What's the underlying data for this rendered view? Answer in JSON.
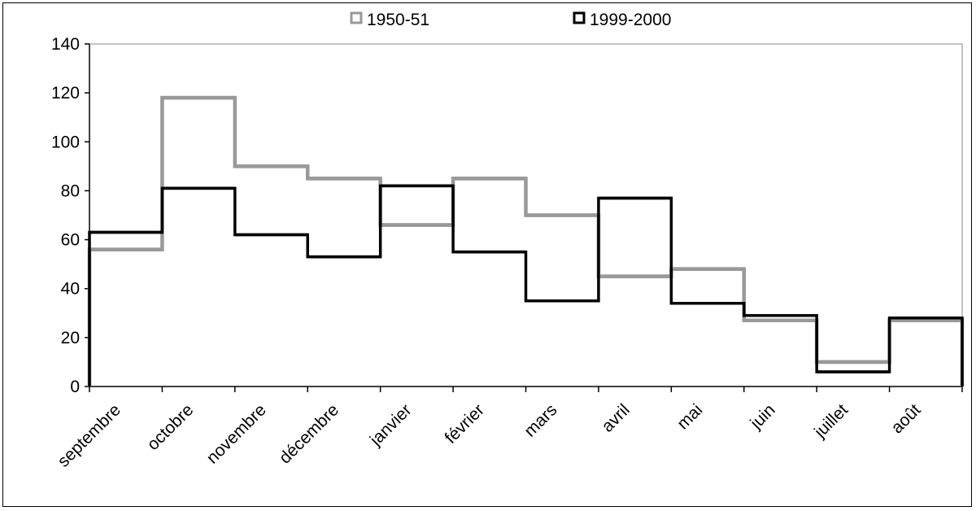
{
  "chart_data": {
    "type": "step",
    "categories": [
      "septembre",
      "octobre",
      "novembre",
      "décembre",
      "janvier",
      "février",
      "mars",
      "avril",
      "mai",
      "juin",
      "juillet",
      "août"
    ],
    "series": [
      {
        "name": "1950-51",
        "color": "#999999",
        "values": [
          56,
          118,
          90,
          85,
          66,
          85,
          70,
          45,
          48,
          27,
          10,
          27
        ]
      },
      {
        "name": "1999-2000",
        "color": "#000000",
        "values": [
          63,
          81,
          62,
          53,
          82,
          55,
          35,
          77,
          34,
          29,
          6,
          28
        ]
      }
    ],
    "ylim": [
      0,
      140
    ],
    "yticks": [
      0,
      20,
      40,
      60,
      80,
      100,
      120,
      140
    ],
    "legend_position": "top-center",
    "grid": false
  }
}
